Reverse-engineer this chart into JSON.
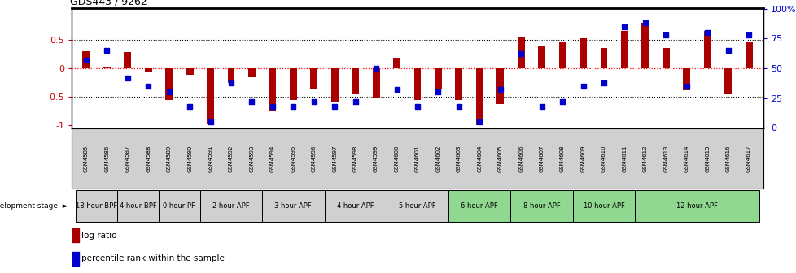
{
  "title": "GDS443 / 9262",
  "samples": [
    "GSM4585",
    "GSM4586",
    "GSM4587",
    "GSM4588",
    "GSM4589",
    "GSM4590",
    "GSM4591",
    "GSM4592",
    "GSM4593",
    "GSM4594",
    "GSM4595",
    "GSM4596",
    "GSM4597",
    "GSM4598",
    "GSM4599",
    "GSM4600",
    "GSM4601",
    "GSM4602",
    "GSM4603",
    "GSM4604",
    "GSM4605",
    "GSM4606",
    "GSM4607",
    "GSM4608",
    "GSM4609",
    "GSM4610",
    "GSM4611",
    "GSM4612",
    "GSM4613",
    "GSM4614",
    "GSM4615",
    "GSM4616",
    "GSM4617"
  ],
  "log_ratio": [
    0.3,
    0.02,
    0.28,
    -0.05,
    -0.55,
    -0.12,
    -0.97,
    -0.25,
    -0.15,
    -0.75,
    -0.55,
    -0.35,
    -0.6,
    -0.45,
    -0.52,
    0.18,
    -0.55,
    -0.35,
    -0.55,
    -1.0,
    -0.62,
    0.55,
    0.38,
    0.45,
    0.52,
    0.35,
    0.65,
    0.8,
    0.35,
    -0.38,
    0.65,
    -0.45,
    0.45
  ],
  "percentile": [
    57,
    65,
    42,
    35,
    30,
    18,
    5,
    38,
    22,
    18,
    18,
    22,
    18,
    22,
    50,
    32,
    18,
    30,
    18,
    5,
    32,
    62,
    18,
    22,
    35,
    38,
    85,
    88,
    78,
    35,
    80,
    65,
    78
  ],
  "bar_color": "#aa0000",
  "dot_color": "#0000cc",
  "stages": [
    {
      "label": "18 hour BPF",
      "start": 0,
      "end": 2,
      "color": "#d0d0d0"
    },
    {
      "label": "4 hour BPF",
      "start": 2,
      "end": 4,
      "color": "#d0d0d0"
    },
    {
      "label": "0 hour PF",
      "start": 4,
      "end": 6,
      "color": "#d0d0d0"
    },
    {
      "label": "2 hour APF",
      "start": 6,
      "end": 9,
      "color": "#d0d0d0"
    },
    {
      "label": "3 hour APF",
      "start": 9,
      "end": 12,
      "color": "#d0d0d0"
    },
    {
      "label": "4 hour APF",
      "start": 12,
      "end": 15,
      "color": "#d0d0d0"
    },
    {
      "label": "5 hour APF",
      "start": 15,
      "end": 18,
      "color": "#d0d0d0"
    },
    {
      "label": "6 hour APF",
      "start": 18,
      "end": 21,
      "color": "#90d890"
    },
    {
      "label": "8 hour APF",
      "start": 21,
      "end": 24,
      "color": "#90d890"
    },
    {
      "label": "10 hour APF",
      "start": 24,
      "end": 27,
      "color": "#90d890"
    },
    {
      "label": "12 hour APF",
      "start": 27,
      "end": 33,
      "color": "#90d890"
    }
  ],
  "ylim_left": [
    -1.05,
    1.05
  ],
  "yticks_left": [
    -1.0,
    -0.5,
    0.0,
    0.5
  ],
  "ylabels_left": [
    "-1",
    "-0.5",
    "0",
    "0.5"
  ],
  "ylim_right": [
    -0.5,
    100.5
  ],
  "yticks_right": [
    0,
    25,
    50,
    75,
    100
  ],
  "ylabels_right": [
    "0",
    "25",
    "50",
    "75",
    "100%"
  ]
}
